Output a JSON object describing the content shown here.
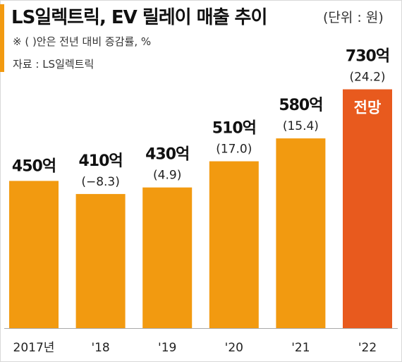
{
  "header": {
    "title": "LS일렉트릭, EV 릴레이 매출 추이",
    "unit": "(단위 : 원)",
    "note": "※ (  )안은 전년 대비 증감률, %",
    "source": "자료 : LS일렉트릭"
  },
  "colors": {
    "accent": "#f29a10",
    "bar": "#f29a10",
    "forecast_bar": "#e85a1e",
    "axis": "#aaaaaa"
  },
  "chart_data": {
    "type": "bar",
    "title": "LS일렉트릭, EV 릴레이 매출 추이",
    "unit": "(단위 : 원)",
    "categories": [
      "2017년",
      "'18",
      "'19",
      "'20",
      "'21",
      "'22"
    ],
    "values": [
      450,
      410,
      430,
      510,
      580,
      730
    ],
    "value_labels": [
      "450억",
      "410억",
      "430억",
      "510억",
      "580억",
      "730억"
    ],
    "change_labels": [
      "",
      "(−8.3)",
      "(4.9)",
      "(17.0)",
      "(15.4)",
      "(24.2)"
    ],
    "forecast_label": "전망",
    "forecast_index": 5,
    "ylim": [
      0,
      800
    ],
    "grid": false,
    "legend": "none"
  }
}
